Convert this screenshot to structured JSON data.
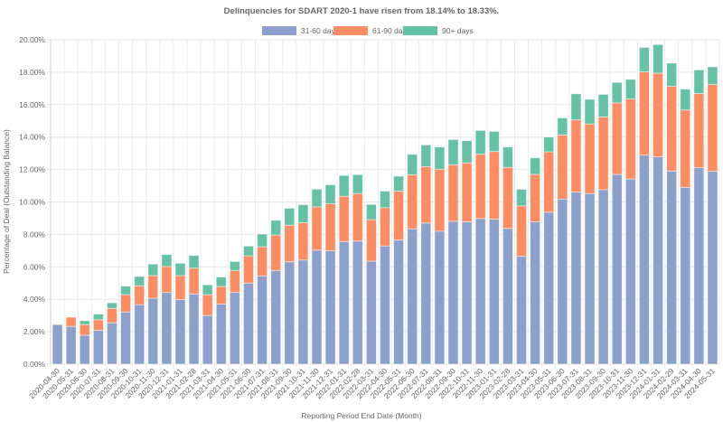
{
  "chart_data": {
    "type": "bar",
    "stacked": true,
    "title": "Delinquencies for SDART 2020-1 have risen from 18.14% to 18.33%.",
    "xlabel": "Reporting Period End Date (Month)",
    "ylabel": "Percentage of Deal (Outstanding Balance)",
    "ylim": [
      0,
      20
    ],
    "yticks": [
      "0.00%",
      "2.00%",
      "4.00%",
      "6.00%",
      "8.00%",
      "10.00%",
      "12.00%",
      "14.00%",
      "16.00%",
      "18.00%",
      "20.00%"
    ],
    "grid": true,
    "legend_position": "top",
    "categories": [
      "2020-04-30",
      "2020-05-31",
      "2020-06-30",
      "2020-07-31",
      "2020-08-31",
      "2020-09-30",
      "2020-10-31",
      "2020-11-30",
      "2020-12-31",
      "2021-01-31",
      "2021-02-28",
      "2021-03-31",
      "2021-04-30",
      "2021-05-31",
      "2021-06-30",
      "2021-07-31",
      "2021-08-31",
      "2021-09-30",
      "2021-10-31",
      "2021-11-30",
      "2021-12-31",
      "2022-01-31",
      "2022-02-28",
      "2022-03-31",
      "2022-04-30",
      "2022-05-31",
      "2022-06-30",
      "2022-07-31",
      "2022-08-31",
      "2022-09-30",
      "2022-10-31",
      "2022-11-30",
      "2023-01-31",
      "2023-02-28",
      "2023-03-31",
      "2023-04-30",
      "2023-05-31",
      "2023-06-30",
      "2023-07-31",
      "2023-08-31",
      "2023-09-30",
      "2023-10-31",
      "2023-11-30",
      "2023-12-31",
      "2024-01-31",
      "2024-02-29",
      "2024-03-31",
      "2024-04-30",
      "2024-05-31"
    ],
    "series": [
      {
        "name": "31-60 days",
        "color": "#8da0cb",
        "values": [
          2.44,
          2.33,
          1.78,
          2.09,
          2.55,
          3.22,
          3.67,
          4.06,
          4.42,
          3.98,
          4.33,
          3.0,
          3.7,
          4.42,
          5.0,
          5.44,
          5.78,
          6.31,
          6.42,
          7.03,
          7.0,
          7.56,
          7.59,
          6.35,
          7.29,
          7.65,
          8.35,
          8.7,
          8.2,
          8.81,
          8.78,
          8.98,
          8.94,
          8.37,
          6.65,
          8.78,
          9.37,
          10.18,
          10.61,
          10.52,
          10.76,
          11.7,
          11.42,
          12.89,
          12.78,
          11.91,
          10.89,
          12.11,
          11.89
        ]
      },
      {
        "name": "61-90 days",
        "color": "#fc8d62",
        "values": [
          0,
          0.56,
          0.66,
          0.65,
          0.89,
          1.07,
          1.16,
          1.4,
          1.6,
          1.48,
          1.59,
          1.28,
          1.09,
          1.36,
          1.68,
          1.8,
          2.18,
          2.26,
          2.3,
          2.67,
          2.89,
          2.79,
          2.93,
          2.56,
          2.36,
          3.02,
          3.33,
          3.48,
          3.82,
          3.48,
          3.63,
          3.96,
          4.17,
          3.76,
          3.11,
          2.92,
          3.72,
          3.95,
          4.45,
          4.29,
          4.48,
          4.41,
          4.93,
          5.13,
          5.16,
          5.22,
          4.78,
          4.57,
          5.35
        ]
      },
      {
        "name": "90+ days",
        "color": "#66c2a5",
        "values": [
          0,
          0,
          0.24,
          0.35,
          0.34,
          0.52,
          0.58,
          0.71,
          0.74,
          0.76,
          0.78,
          0.61,
          0.58,
          0.55,
          0.6,
          0.78,
          0.91,
          1.04,
          1.11,
          1.09,
          1.17,
          1.28,
          1.16,
          0.94,
          1.02,
          0.92,
          1.26,
          1.34,
          1.37,
          1.56,
          1.37,
          1.47,
          1.24,
          1.26,
          1.02,
          1.02,
          0.91,
          1.05,
          1.61,
          1.52,
          1.39,
          1.26,
          1.21,
          1.51,
          1.76,
          1.43,
          1.29,
          1.46,
          1.09
        ]
      }
    ]
  }
}
